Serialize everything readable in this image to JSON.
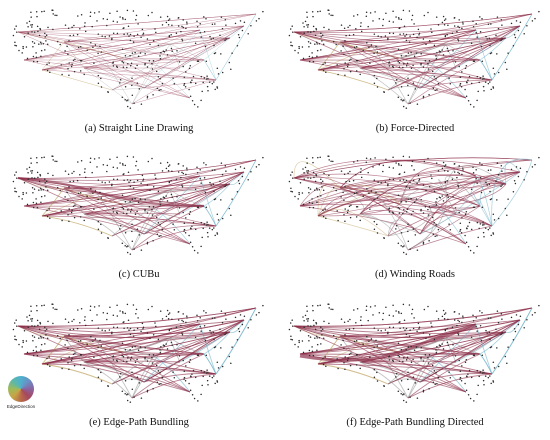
{
  "panels": [
    {
      "caption": "(a)  Straight Line Drawing",
      "style": "straight"
    },
    {
      "caption": "(b)  Force-Directed",
      "style": "force"
    },
    {
      "caption": "(c)  CUBu",
      "style": "cubu"
    },
    {
      "caption": "(d)  Winding Roads",
      "style": "winding"
    },
    {
      "caption": "(e)  Edge-Path Bundling",
      "style": "edgepath"
    },
    {
      "caption": "(f)  Edge-Path Bundling Directed",
      "style": "edgepath-directed"
    }
  ],
  "legend": {
    "label": "EdgeDirection"
  },
  "colors": {
    "edge_red": "#8c2f4a",
    "edge_tan": "#c9b27a",
    "edge_blue": "#6fb3c9",
    "edge_gray": "#9a9a9a",
    "node": "#2a2a2a"
  }
}
